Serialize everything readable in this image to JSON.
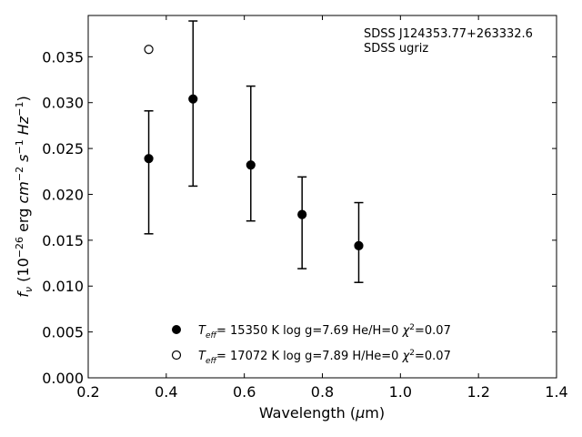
{
  "chart_data": {
    "type": "scatter",
    "xlabel": "Wavelength (μm)",
    "ylabel": "f_ν (10⁻²⁶ erg cm⁻² s⁻¹ Hz⁻¹)",
    "xlim": [
      0.2,
      1.4
    ],
    "ylim": [
      0.0,
      0.0395
    ],
    "x_ticks": [
      0.2,
      0.4,
      0.6,
      0.8,
      1.0,
      1.2,
      1.4
    ],
    "x_tick_labels": [
      "0.2",
      "0.4",
      "0.6",
      "0.8",
      "1.0",
      "1.2",
      "1.4"
    ],
    "y_ticks": [
      0.0,
      0.005,
      0.01,
      0.015,
      0.02,
      0.025,
      0.03,
      0.035
    ],
    "y_tick_labels": [
      "0.000",
      "0.005",
      "0.010",
      "0.015",
      "0.020",
      "0.025",
      "0.030",
      "0.035"
    ],
    "grid": false,
    "legend_position": "lower-center",
    "annotations": [
      "SDSS J124353.77+263332.6",
      "SDSS ugriz"
    ],
    "series": [
      {
        "name": "T_eff= 15350 K  log g=7.69  He/H=0  χ²=0.07",
        "marker": "filled-circle",
        "points": [
          {
            "x": 0.3551,
            "y": 0.0239,
            "ylow": 0.0157,
            "yhigh": 0.0291
          },
          {
            "x": 0.4686,
            "y": 0.0304,
            "ylow": 0.0209,
            "yhigh": 0.0389
          },
          {
            "x": 0.6166,
            "y": 0.0232,
            "ylow": 0.0171,
            "yhigh": 0.0318
          },
          {
            "x": 0.748,
            "y": 0.0178,
            "ylow": 0.0119,
            "yhigh": 0.0219
          },
          {
            "x": 0.8932,
            "y": 0.0144,
            "ylow": 0.0104,
            "yhigh": 0.0191
          }
        ]
      },
      {
        "name": "T_eff= 17072 K  log g=7.89  H/He=0  χ²=0.07",
        "marker": "open-circle",
        "points": [
          {
            "x": 0.3551,
            "y": 0.0358
          }
        ]
      }
    ]
  }
}
